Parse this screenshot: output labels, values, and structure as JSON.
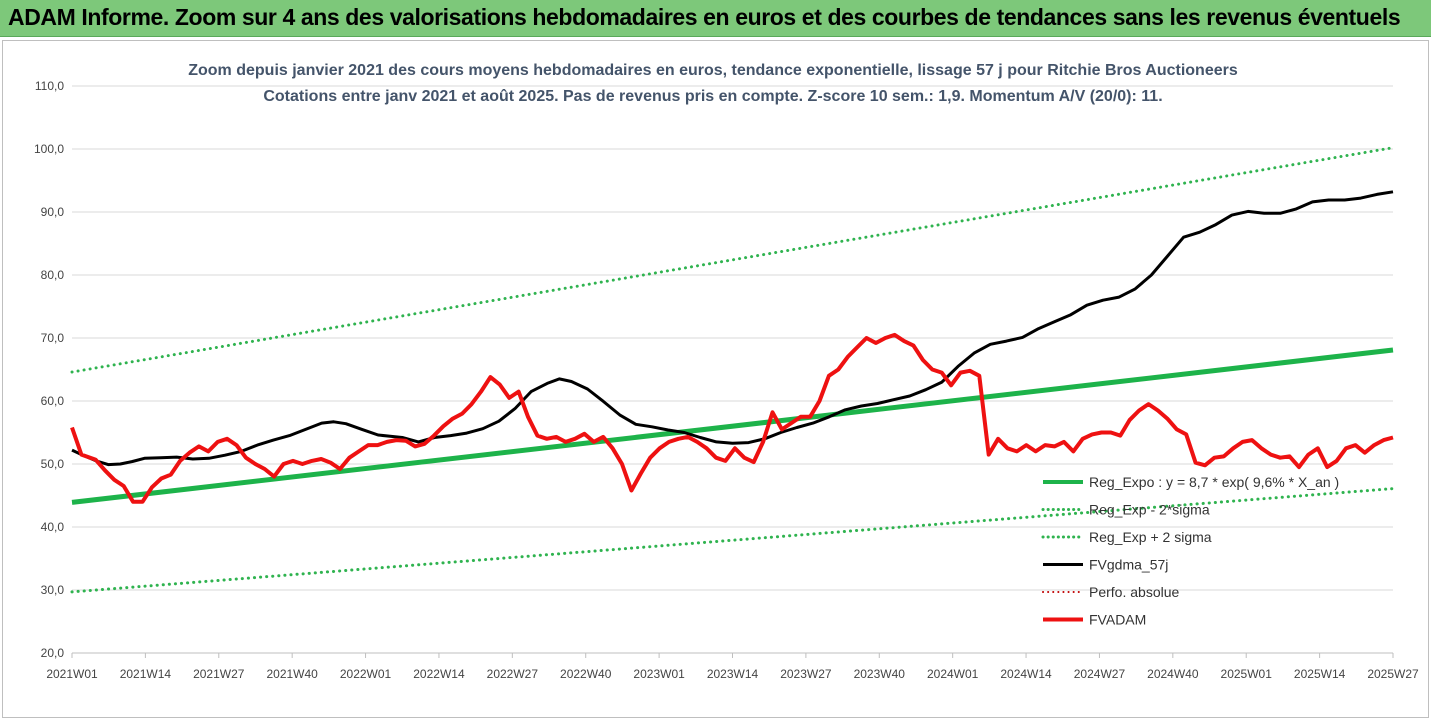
{
  "banner": {
    "title": "ADAM Informe. Zoom sur 4 ans des valorisations hebdomadaires en euros et des courbes de tendances sans les revenus éventuels",
    "color": "#7dc87a"
  },
  "chart_data": {
    "type": "line",
    "title": "Zoom depuis janvier 2021 des cours moyens hebdomadaires en euros, tendance exponentielle, lissage 57 j pour Ritchie Bros Auctioneers",
    "subtitle": "Cotations entre janv 2021 et août 2025. Pas de revenus pris en compte. Z-score 10 sem.: 1,9. Momentum A/V (20/0): 11.",
    "xlabel": "",
    "ylabel": "",
    "ylim": [
      20,
      110
    ],
    "yticks": [
      "20,0",
      "30,0",
      "40,0",
      "50,0",
      "60,0",
      "70,0",
      "80,0",
      "90,0",
      "100,0",
      "110,0"
    ],
    "x_ticks": [
      "2021W01",
      "2021W14",
      "2021W27",
      "2021W40",
      "2022W01",
      "2022W14",
      "2022W27",
      "2022W40",
      "2023W01",
      "2023W14",
      "2023W27",
      "2023W40",
      "2024W01",
      "2024W14",
      "2024W27",
      "2024W40",
      "2025W01",
      "2025W14",
      "2025W27"
    ],
    "x_range_weeks": [
      0,
      238
    ],
    "grid": "horizontal",
    "legend_position": "bottom-right",
    "series": [
      {
        "name": "Reg_Expo : y = 8,7 * exp( 9,6% * X_an )",
        "color": "#1db34a",
        "style": "solid",
        "width": 5,
        "points": [
          [
            0,
            43.9
          ],
          [
            238,
            68.1
          ]
        ]
      },
      {
        "name": "Reg_Exp - 2*sigma",
        "color": "#2fb34f",
        "style": "dotted",
        "width": 3,
        "points": [
          [
            0,
            29.7
          ],
          [
            238,
            46.1
          ]
        ]
      },
      {
        "name": "Reg_Exp + 2 sigma",
        "color": "#2fb34f",
        "style": "dotted",
        "width": 3,
        "points": [
          [
            0,
            64.6
          ],
          [
            238,
            100.2
          ]
        ]
      },
      {
        "name": "FVgdma_57j",
        "color": "#000000",
        "style": "solid",
        "width": 3,
        "points": [
          [
            0,
            52.2
          ],
          [
            3,
            51.3
          ],
          [
            6,
            50.5
          ],
          [
            9,
            49.9
          ],
          [
            12,
            50.0
          ],
          [
            15,
            50.4
          ],
          [
            18,
            50.9
          ],
          [
            22,
            51.0
          ],
          [
            26,
            51.1
          ],
          [
            30,
            50.8
          ],
          [
            34,
            50.9
          ],
          [
            38,
            51.4
          ],
          [
            42,
            52.0
          ],
          [
            46,
            53.0
          ],
          [
            50,
            53.8
          ],
          [
            54,
            54.5
          ],
          [
            58,
            55.5
          ],
          [
            62,
            56.5
          ],
          [
            65,
            56.7
          ],
          [
            68,
            56.4
          ],
          [
            72,
            55.5
          ],
          [
            76,
            54.6
          ],
          [
            79,
            54.4
          ],
          [
            82,
            54.2
          ],
          [
            86,
            53.5
          ],
          [
            90,
            54.2
          ],
          [
            94,
            54.5
          ],
          [
            98,
            54.9
          ],
          [
            102,
            55.6
          ],
          [
            106,
            56.8
          ],
          [
            110,
            58.8
          ],
          [
            114,
            61.5
          ],
          [
            118,
            62.8
          ],
          [
            121,
            63.5
          ],
          [
            124,
            63.1
          ],
          [
            128,
            61.9
          ],
          [
            132,
            59.9
          ],
          [
            136,
            57.8
          ],
          [
            140,
            56.3
          ],
          [
            144,
            55.9
          ],
          [
            148,
            55.4
          ],
          [
            152,
            55.0
          ],
          [
            156,
            54.2
          ],
          [
            160,
            53.5
          ],
          [
            164,
            53.3
          ],
          [
            168,
            53.4
          ],
          [
            172,
            54.0
          ],
          [
            176,
            55.0
          ],
          [
            180,
            55.8
          ],
          [
            184,
            56.5
          ],
          [
            188,
            57.5
          ],
          [
            192,
            58.6
          ],
          [
            196,
            59.2
          ],
          [
            200,
            59.6
          ],
          [
            204,
            60.2
          ],
          [
            208,
            60.8
          ],
          [
            212,
            61.8
          ],
          [
            216,
            63.0
          ],
          [
            220,
            65.5
          ],
          [
            224,
            67.6
          ],
          [
            228,
            69.0
          ],
          [
            232,
            69.5
          ],
          [
            236,
            70.1
          ],
          [
            240,
            71.5
          ],
          [
            244,
            72.6
          ],
          [
            248,
            73.7
          ],
          [
            252,
            75.2
          ],
          [
            256,
            76.0
          ],
          [
            260,
            76.5
          ],
          [
            264,
            77.8
          ],
          [
            268,
            80.0
          ],
          [
            272,
            83.0
          ],
          [
            276,
            86.0
          ],
          [
            280,
            86.8
          ],
          [
            284,
            88.0
          ],
          [
            288,
            89.5
          ],
          [
            292,
            90.1
          ],
          [
            296,
            89.8
          ],
          [
            300,
            89.8
          ],
          [
            304,
            90.5
          ],
          [
            308,
            91.6
          ],
          [
            312,
            91.9
          ],
          [
            316,
            91.9
          ],
          [
            320,
            92.2
          ],
          [
            324,
            92.8
          ],
          [
            328,
            93.2
          ]
        ]
      },
      {
        "name": "Perfo. absolue",
        "color": "#c00000",
        "style": "dotted",
        "width": 2,
        "points": []
      },
      {
        "name": "FVADAM",
        "color": "#ee1111",
        "style": "solid",
        "width": 4,
        "points": [
          [
            0,
            55.8
          ],
          [
            2,
            51.5
          ],
          [
            5,
            50.7
          ],
          [
            7,
            49.0
          ],
          [
            9,
            47.5
          ],
          [
            11,
            46.5
          ],
          [
            13,
            44.0
          ],
          [
            15,
            44.0
          ],
          [
            17,
            46.3
          ],
          [
            19,
            47.7
          ],
          [
            21,
            48.3
          ],
          [
            23,
            50.5
          ],
          [
            25,
            51.8
          ],
          [
            27,
            52.8
          ],
          [
            29,
            52.0
          ],
          [
            31,
            53.5
          ],
          [
            33,
            54.0
          ],
          [
            35,
            53.0
          ],
          [
            37,
            51.0
          ],
          [
            39,
            50.0
          ],
          [
            41,
            49.2
          ],
          [
            43,
            48.0
          ],
          [
            45,
            50.0
          ],
          [
            47,
            50.5
          ],
          [
            49,
            50.0
          ],
          [
            51,
            50.5
          ],
          [
            53,
            50.8
          ],
          [
            55,
            50.2
          ],
          [
            57,
            49.2
          ],
          [
            59,
            51.0
          ],
          [
            61,
            52.0
          ],
          [
            63,
            53.0
          ],
          [
            65,
            53.0
          ],
          [
            67,
            53.5
          ],
          [
            69,
            53.8
          ],
          [
            71,
            53.7
          ],
          [
            73,
            52.8
          ],
          [
            75,
            53.2
          ],
          [
            77,
            54.5
          ],
          [
            79,
            56.0
          ],
          [
            81,
            57.2
          ],
          [
            83,
            58.0
          ],
          [
            85,
            59.5
          ],
          [
            87,
            61.5
          ],
          [
            89,
            63.8
          ],
          [
            91,
            62.6
          ],
          [
            93,
            60.5
          ],
          [
            95,
            61.5
          ],
          [
            97,
            57.5
          ],
          [
            99,
            54.5
          ],
          [
            101,
            54.0
          ],
          [
            103,
            54.3
          ],
          [
            105,
            53.5
          ],
          [
            107,
            54.0
          ],
          [
            109,
            54.8
          ],
          [
            111,
            53.5
          ],
          [
            113,
            54.3
          ],
          [
            115,
            52.5
          ],
          [
            117,
            50.0
          ],
          [
            119,
            45.8
          ],
          [
            121,
            48.5
          ],
          [
            123,
            51.0
          ],
          [
            125,
            52.5
          ],
          [
            127,
            53.5
          ],
          [
            129,
            54.0
          ],
          [
            131,
            54.3
          ],
          [
            133,
            53.5
          ],
          [
            135,
            52.5
          ],
          [
            137,
            51.0
          ],
          [
            139,
            50.5
          ],
          [
            141,
            52.5
          ],
          [
            143,
            51.0
          ],
          [
            145,
            50.3
          ],
          [
            147,
            53.5
          ],
          [
            149,
            58.2
          ],
          [
            151,
            55.5
          ],
          [
            153,
            56.5
          ],
          [
            155,
            57.5
          ],
          [
            157,
            57.5
          ],
          [
            159,
            60.0
          ],
          [
            161,
            64.0
          ],
          [
            163,
            65.0
          ],
          [
            165,
            67.0
          ],
          [
            167,
            68.5
          ],
          [
            169,
            70.0
          ],
          [
            171,
            69.2
          ],
          [
            173,
            70.0
          ],
          [
            175,
            70.5
          ],
          [
            177,
            69.5
          ],
          [
            179,
            68.8
          ],
          [
            181,
            66.5
          ],
          [
            183,
            65.0
          ],
          [
            185,
            64.5
          ],
          [
            187,
            62.5
          ],
          [
            189,
            64.5
          ],
          [
            191,
            64.8
          ],
          [
            193,
            64.0
          ],
          [
            195,
            51.5
          ],
          [
            197,
            54.0
          ],
          [
            199,
            52.5
          ],
          [
            201,
            52.0
          ],
          [
            203,
            53.0
          ],
          [
            205,
            52.0
          ],
          [
            207,
            53.0
          ],
          [
            209,
            52.8
          ],
          [
            211,
            53.5
          ],
          [
            213,
            52.0
          ],
          [
            215,
            54.0
          ],
          [
            217,
            54.7
          ],
          [
            219,
            55.0
          ],
          [
            221,
            55.0
          ],
          [
            223,
            54.5
          ],
          [
            225,
            57.0
          ],
          [
            227,
            58.5
          ],
          [
            229,
            59.5
          ],
          [
            231,
            58.5
          ],
          [
            233,
            57.2
          ],
          [
            235,
            55.5
          ],
          [
            237,
            54.7
          ],
          [
            239,
            50.2
          ],
          [
            241,
            49.8
          ],
          [
            243,
            51.0
          ],
          [
            245,
            51.2
          ],
          [
            247,
            52.5
          ],
          [
            249,
            53.5
          ],
          [
            251,
            53.8
          ],
          [
            253,
            52.5
          ],
          [
            255,
            51.5
          ],
          [
            257,
            51.0
          ],
          [
            259,
            51.2
          ],
          [
            261,
            49.5
          ],
          [
            263,
            51.5
          ],
          [
            265,
            52.5
          ],
          [
            267,
            49.5
          ],
          [
            269,
            50.5
          ],
          [
            271,
            52.5
          ],
          [
            273,
            53.0
          ],
          [
            275,
            51.8
          ],
          [
            277,
            53.0
          ],
          [
            279,
            53.8
          ],
          [
            281,
            54.2
          ]
        ]
      }
    ]
  }
}
